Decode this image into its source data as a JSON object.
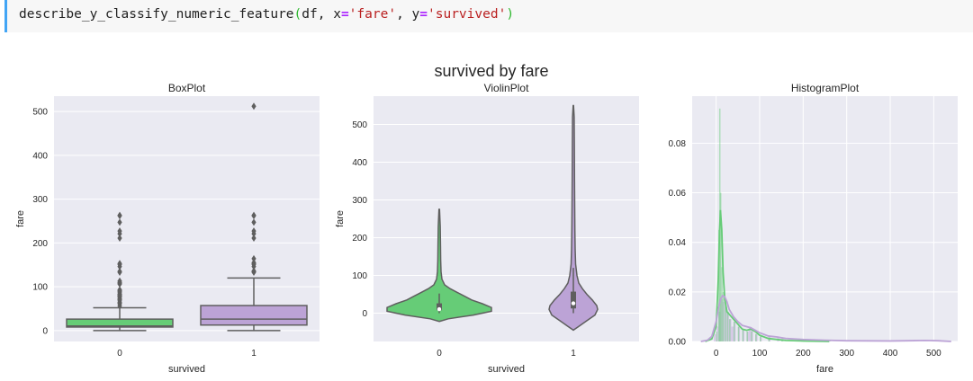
{
  "code": {
    "func": "describe_y_classify_numeric_feature",
    "open": "(",
    "arg1": "df, x",
    "eq": "=",
    "x_val": "'fare'",
    "sep": ", y",
    "y_val": "'survived'",
    "close": ")"
  },
  "figure": {
    "suptitle": "survived by fare",
    "colors": {
      "class0": "#66cc77",
      "class1": "#bca3d6",
      "panel_bg": "#eaeaf2",
      "outline": "#5f5f5f"
    }
  },
  "chart_data": [
    {
      "type": "box",
      "title": "BoxPlot",
      "xlabel": "survived",
      "ylabel": "fare",
      "categories": [
        "0",
        "1"
      ],
      "ylim": [
        -25,
        535
      ],
      "yticks": [
        0,
        100,
        200,
        300,
        400,
        500
      ],
      "boxes": [
        {
          "category": "0",
          "min": 0,
          "q1": 7.9,
          "median": 10.5,
          "q3": 26,
          "whisker_high": 52,
          "outliers": [
            56,
            61,
            63,
            65,
            69,
            71,
            73,
            76,
            78,
            79,
            80,
            82,
            83,
            86,
            89,
            91,
            93,
            106,
            108,
            110,
            113,
            133,
            135,
            146,
            151,
            153,
            211,
            221,
            227,
            247,
            262,
            263
          ]
        },
        {
          "category": "1",
          "min": 0,
          "q1": 12.5,
          "median": 26,
          "q3": 57,
          "whisker_high": 120,
          "outliers": [
            133,
            134,
            135,
            136,
            146,
            151,
            153,
            155,
            164,
            211,
            221,
            227,
            247,
            262,
            263,
            512
          ]
        }
      ],
      "grid": true
    },
    {
      "type": "violin",
      "title": "ViolinPlot",
      "xlabel": "survived",
      "ylabel": "fare",
      "categories": [
        "0",
        "1"
      ],
      "ylim": [
        -75,
        575
      ],
      "yticks": [
        0,
        100,
        200,
        300,
        400,
        500
      ],
      "grid": true
    },
    {
      "type": "histogram",
      "title": "HistogramPlot",
      "xlabel": "fare",
      "xlim": [
        -55,
        555
      ],
      "ylim": [
        0,
        0.099
      ],
      "xticks": [
        0,
        100,
        200,
        300,
        400,
        500
      ],
      "yticks": [
        0.0,
        0.02,
        0.04,
        0.06,
        0.08
      ],
      "ytick_labels": [
        "0.00",
        "0.02",
        "0.04",
        "0.06",
        "0.08"
      ],
      "series": [
        {
          "category": "0",
          "kde_x": [
            -25,
            -10,
            0,
            5,
            8,
            10,
            13,
            16,
            20,
            25,
            30,
            40,
            50,
            60,
            70,
            80,
            90,
            100,
            120,
            140,
            160,
            200,
            260
          ],
          "kde_y": [
            0,
            0.001,
            0.006,
            0.025,
            0.045,
            0.053,
            0.045,
            0.028,
            0.017,
            0.012,
            0.011,
            0.009,
            0.007,
            0.005,
            0.0045,
            0.005,
            0.004,
            0.0025,
            0.0012,
            0.0008,
            0.0004,
            0.0002,
            0
          ]
        },
        {
          "category": "1",
          "kde_x": [
            -35,
            -20,
            -10,
            0,
            5,
            10,
            15,
            20,
            25,
            30,
            40,
            50,
            60,
            70,
            80,
            90,
            100,
            120,
            140,
            160,
            200,
            250,
            300,
            400,
            480,
            510,
            540
          ],
          "kde_y": [
            0,
            0.0005,
            0.002,
            0.008,
            0.013,
            0.017,
            0.0185,
            0.018,
            0.016,
            0.013,
            0.01,
            0.008,
            0.0065,
            0.006,
            0.0055,
            0.0045,
            0.0035,
            0.0022,
            0.0018,
            0.0012,
            0.0008,
            0.0005,
            0.0003,
            0.0002,
            0.0004,
            0.0003,
            0
          ]
        }
      ],
      "grid": true
    }
  ]
}
